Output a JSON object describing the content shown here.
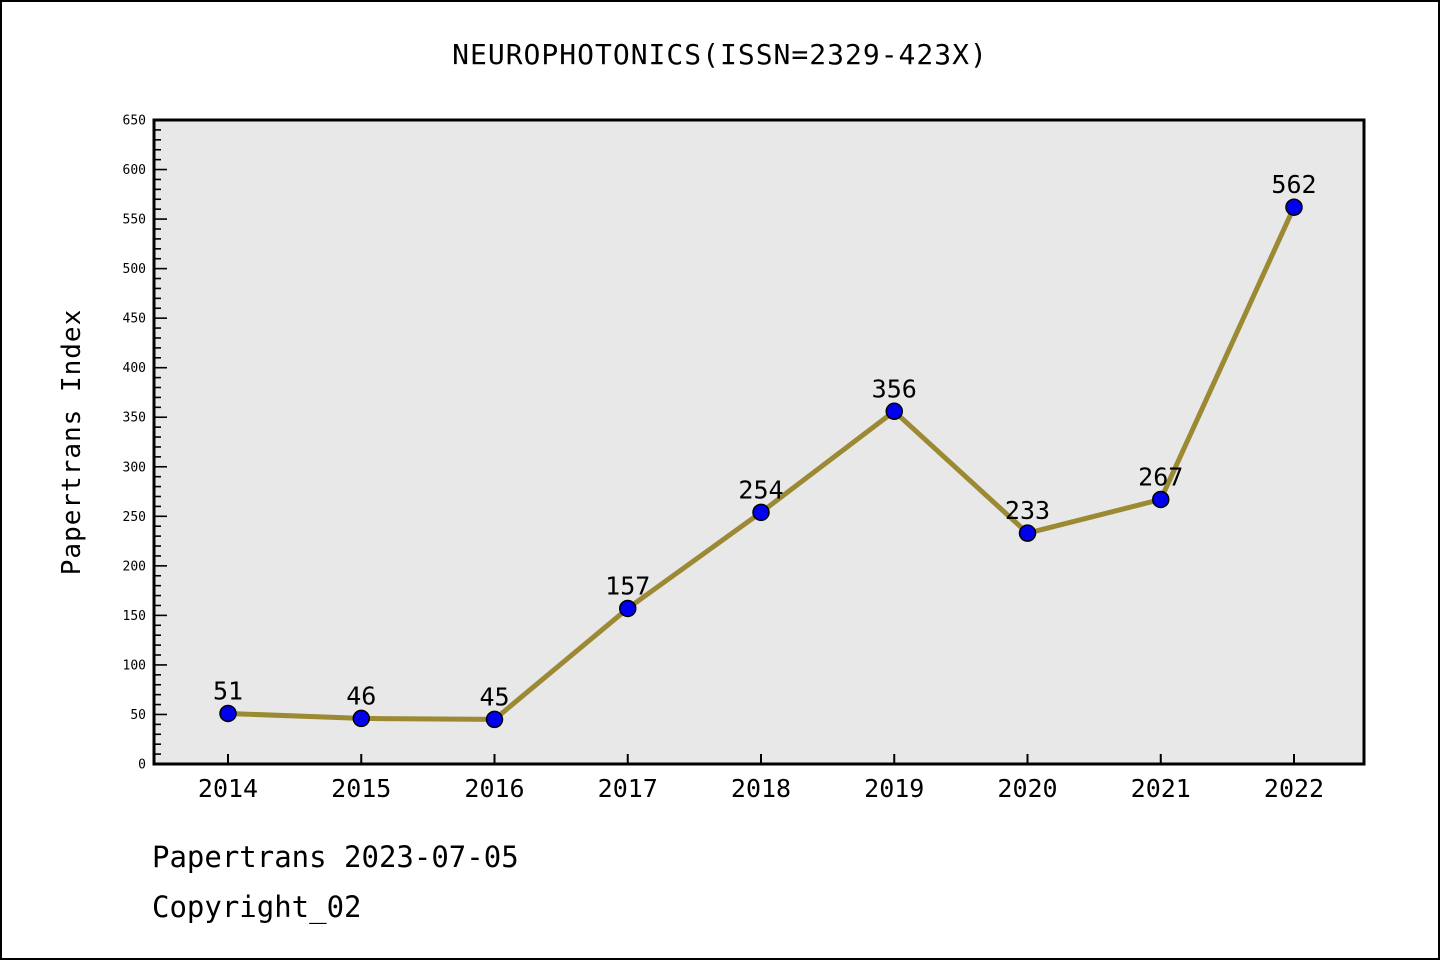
{
  "title": "NEUROPHOTONICS(ISSN=2329-423X)",
  "footer": {
    "line1": "Papertrans 2023-07-05",
    "line2": "Copyright_02"
  },
  "chart_data": {
    "type": "line",
    "title": "NEUROPHOTONICS(ISSN=2329-423X)",
    "categories": [
      "2014",
      "2015",
      "2016",
      "2017",
      "2018",
      "2019",
      "2020",
      "2021",
      "2022"
    ],
    "series": [
      {
        "name": "Papertrans Index",
        "values": [
          51,
          46,
          45,
          157,
          254,
          356,
          233,
          267,
          562
        ]
      }
    ],
    "xlabel": "",
    "ylabel": "Papertrans Index",
    "ylim": [
      0,
      650
    ],
    "y_ticks": [
      0,
      50,
      100,
      150,
      200,
      250,
      300,
      350,
      400,
      450,
      500,
      550,
      600,
      650
    ],
    "y_minor_step": 10,
    "grid": false,
    "legend_position": "none",
    "data_labels_shown": true,
    "colors": {
      "line": "#9b8a33",
      "marker_fill": "#0000ee",
      "marker_edge": "#000000",
      "plot_background": "#e8e8e8",
      "frame": "#000000",
      "page_background": "#ffffff",
      "text": "#000000"
    }
  }
}
